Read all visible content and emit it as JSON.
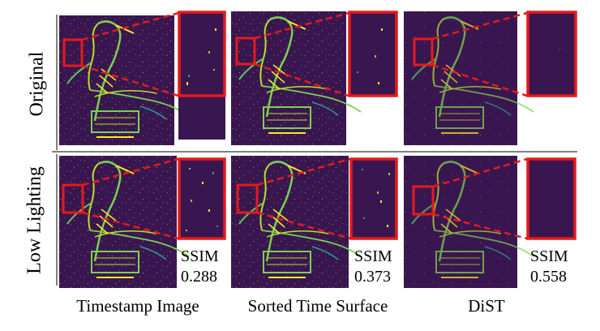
{
  "row_labels": [
    "Original",
    "Low Lighting"
  ],
  "column_labels": [
    "Timestamp Image",
    "Sorted Time Surface",
    "DiST"
  ],
  "ssim": {
    "label": "SSIM",
    "values": [
      "0.288",
      "0.373",
      "0.558"
    ]
  },
  "colors": {
    "background_dark": "#3a1650",
    "event_green": "#7ad151",
    "event_yellow": "#fde725",
    "event_teal": "#2a9d8f",
    "zoom_box": "#e61a1a"
  }
}
